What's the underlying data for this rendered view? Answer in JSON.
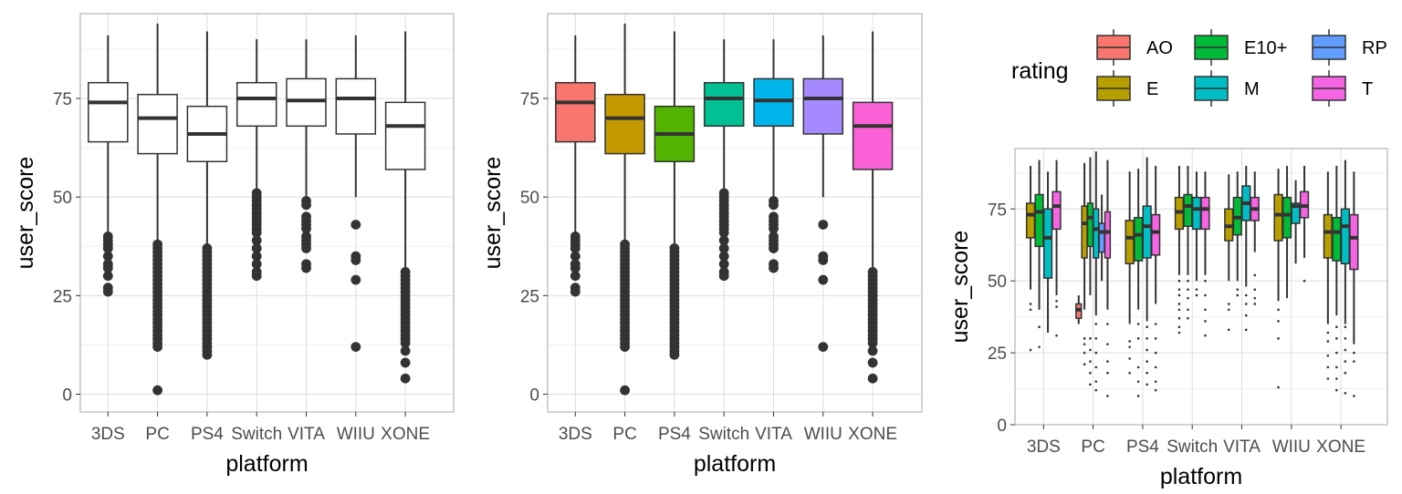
{
  "chart_data": [
    {
      "type": "box",
      "panel": "left",
      "xlabel": "platform",
      "ylabel": "user_score",
      "categories": [
        "3DS",
        "PC",
        "PS4",
        "Switch",
        "VITA",
        "WIIU",
        "XONE"
      ],
      "y_ticks": [
        0,
        25,
        50,
        75
      ],
      "ylim": [
        -4.5,
        96.5
      ],
      "fill": "#ffffff",
      "boxes": [
        {
          "q1": 64,
          "median": 74,
          "q3": 79,
          "lower": 41,
          "upper": 91,
          "outliers": [
            40,
            39,
            38,
            37,
            35,
            33,
            32,
            30,
            27,
            26
          ]
        },
        {
          "q1": 61,
          "median": 70,
          "q3": 76,
          "lower": 39,
          "upper": 94,
          "outliers": [
            38,
            37,
            36,
            35,
            34,
            33,
            32,
            31,
            30,
            29,
            28,
            27,
            26,
            25,
            24,
            23,
            22,
            21,
            20,
            19,
            18,
            17,
            16,
            15,
            14,
            13,
            12,
            1
          ]
        },
        {
          "q1": 59,
          "median": 66,
          "q3": 73,
          "lower": 38,
          "upper": 92,
          "outliers": [
            37,
            36,
            35,
            34,
            33,
            32,
            31,
            30,
            29,
            28,
            27,
            26,
            25,
            24,
            23,
            22,
            21,
            20,
            19,
            18,
            17,
            16,
            15,
            14,
            13,
            12,
            11,
            10
          ]
        },
        {
          "q1": 68,
          "median": 75,
          "q3": 79,
          "lower": 52,
          "upper": 90,
          "outliers": [
            51,
            50,
            49,
            48,
            47,
            46,
            45,
            44,
            43,
            42,
            41,
            39,
            37,
            35,
            33,
            31,
            30
          ]
        },
        {
          "q1": 68,
          "median": 74.5,
          "q3": 80,
          "lower": 50,
          "upper": 90,
          "outliers": [
            49,
            48,
            45,
            44,
            43,
            42,
            40,
            39,
            38,
            37,
            33,
            32
          ]
        },
        {
          "q1": 66,
          "median": 75,
          "q3": 80,
          "lower": 50,
          "upper": 91,
          "outliers": [
            43,
            35,
            34,
            29,
            12
          ]
        },
        {
          "q1": 57,
          "median": 68,
          "q3": 74,
          "lower": 32,
          "upper": 92,
          "outliers": [
            31,
            30,
            29,
            28,
            27,
            26,
            25,
            24,
            23,
            22,
            21,
            20,
            19,
            18,
            17,
            16,
            15,
            14,
            13,
            11,
            8,
            4
          ]
        }
      ]
    },
    {
      "type": "box",
      "panel": "middle",
      "xlabel": "platform",
      "ylabel": "user_score",
      "categories": [
        "3DS",
        "PC",
        "PS4",
        "Switch",
        "VITA",
        "WIIU",
        "XONE"
      ],
      "y_ticks": [
        0,
        25,
        50,
        75
      ],
      "ylim": [
        -4.5,
        96.5
      ],
      "fills": [
        "#F8766D",
        "#C49A00",
        "#53B400",
        "#00C094",
        "#00B6EB",
        "#A58AFF",
        "#FB61D7"
      ],
      "boxes": [
        {
          "q1": 64,
          "median": 74,
          "q3": 79,
          "lower": 41,
          "upper": 91,
          "outliers": [
            40,
            39,
            38,
            37,
            35,
            33,
            32,
            30,
            27,
            26
          ]
        },
        {
          "q1": 61,
          "median": 70,
          "q3": 76,
          "lower": 39,
          "upper": 94,
          "outliers": [
            38,
            37,
            36,
            35,
            34,
            33,
            32,
            31,
            30,
            29,
            28,
            27,
            26,
            25,
            24,
            23,
            22,
            21,
            20,
            19,
            18,
            17,
            16,
            15,
            14,
            13,
            12,
            1
          ]
        },
        {
          "q1": 59,
          "median": 66,
          "q3": 73,
          "lower": 38,
          "upper": 92,
          "outliers": [
            37,
            36,
            35,
            34,
            33,
            32,
            31,
            30,
            29,
            28,
            27,
            26,
            25,
            24,
            23,
            22,
            21,
            20,
            19,
            18,
            17,
            16,
            15,
            14,
            13,
            12,
            11,
            10
          ]
        },
        {
          "q1": 68,
          "median": 75,
          "q3": 79,
          "lower": 52,
          "upper": 90,
          "outliers": [
            51,
            50,
            49,
            48,
            47,
            46,
            45,
            44,
            43,
            42,
            41,
            39,
            37,
            35,
            33,
            31,
            30
          ]
        },
        {
          "q1": 68,
          "median": 74.5,
          "q3": 80,
          "lower": 50,
          "upper": 90,
          "outliers": [
            49,
            48,
            45,
            44,
            43,
            42,
            40,
            39,
            38,
            37,
            33,
            32
          ]
        },
        {
          "q1": 66,
          "median": 75,
          "q3": 80,
          "lower": 50,
          "upper": 91,
          "outliers": [
            43,
            35,
            34,
            29,
            12
          ]
        },
        {
          "q1": 57,
          "median": 68,
          "q3": 74,
          "lower": 32,
          "upper": 92,
          "outliers": [
            31,
            30,
            29,
            28,
            27,
            26,
            25,
            24,
            23,
            22,
            21,
            20,
            19,
            18,
            17,
            16,
            15,
            14,
            13,
            11,
            8,
            4
          ]
        }
      ]
    },
    {
      "type": "box",
      "panel": "right",
      "xlabel": "platform",
      "ylabel": "user_score",
      "categories": [
        "3DS",
        "PC",
        "PS4",
        "Switch",
        "VITA",
        "WIIU",
        "XONE"
      ],
      "y_ticks": [
        0,
        25,
        50,
        75
      ],
      "ylim": [
        0,
        96
      ],
      "legend": {
        "title": "rating",
        "placement": "top",
        "entries": [
          {
            "label": "AO",
            "color": "#F8766D"
          },
          {
            "label": "E10+",
            "color": "#00BA38"
          },
          {
            "label": "RP",
            "color": "#619CFF"
          },
          {
            "label": "E",
            "color": "#B79F00"
          },
          {
            "label": "M",
            "color": "#00BFC4"
          },
          {
            "label": "T",
            "color": "#F564E3"
          }
        ]
      },
      "groups": [
        {
          "platform": "3DS",
          "boxes": [
            {
              "rating": "E",
              "q1": 65,
              "median": 73,
              "q3": 77,
              "lower": 47,
              "upper": 90,
              "outliers": [
                42,
                40,
                26
              ]
            },
            {
              "rating": "E10+",
              "q1": 62,
              "median": 74,
              "q3": 80,
              "lower": 40,
              "upper": 92,
              "outliers": [
                34,
                27
              ]
            },
            {
              "rating": "M",
              "q1": 51,
              "median": 65,
              "q3": 75,
              "lower": 32,
              "upper": 88,
              "outliers": []
            },
            {
              "rating": "T",
              "q1": 68,
              "median": 76,
              "q3": 81,
              "lower": 45,
              "upper": 92,
              "outliers": [
                43,
                41,
                31
              ]
            }
          ]
        },
        {
          "platform": "PC",
          "boxes": [
            {
              "rating": "AO",
              "q1": 37,
              "median": 40,
              "q3": 42,
              "lower": 35,
              "upper": 45,
              "outliers": []
            },
            {
              "rating": "E",
              "q1": 58,
              "median": 70,
              "q3": 76,
              "lower": 40,
              "upper": 91,
              "outliers": [
                30,
                28,
                25,
                21
              ]
            },
            {
              "rating": "E10+",
              "q1": 62,
              "median": 72,
              "q3": 77,
              "lower": 45,
              "upper": 93,
              "outliers": [
                30,
                26,
                22,
                18,
                14
              ]
            },
            {
              "rating": "M",
              "q1": 58,
              "median": 68,
              "q3": 75,
              "lower": 38,
              "upper": 95,
              "outliers": [
                35,
                30,
                25,
                20,
                15,
                12
              ]
            },
            {
              "rating": "RP",
              "q1": 60,
              "median": 67,
              "q3": 70,
              "lower": 50,
              "upper": 80,
              "outliers": []
            },
            {
              "rating": "T",
              "q1": 58,
              "median": 67,
              "q3": 74,
              "lower": 40,
              "upper": 92,
              "outliers": [
                35,
                28,
                22,
                18,
                10
              ]
            }
          ]
        },
        {
          "platform": "PS4",
          "boxes": [
            {
              "rating": "E",
              "q1": 56,
              "median": 65,
              "q3": 71,
              "lower": 35,
              "upper": 88,
              "outliers": [
                29,
                27,
                23,
                18
              ]
            },
            {
              "rating": "E10+",
              "q1": 57,
              "median": 66,
              "q3": 72,
              "lower": 40,
              "upper": 89,
              "outliers": [
                35,
                30,
                20,
                15,
                10
              ]
            },
            {
              "rating": "M",
              "q1": 58,
              "median": 69,
              "q3": 76,
              "lower": 36,
              "upper": 93,
              "outliers": [
                34,
                30,
                26,
                22,
                18,
                14
              ]
            },
            {
              "rating": "T",
              "q1": 59,
              "median": 67,
              "q3": 73,
              "lower": 42,
              "upper": 90,
              "outliers": [
                35,
                30,
                25,
                20,
                15,
                12
              ]
            }
          ]
        },
        {
          "platform": "Switch",
          "boxes": [
            {
              "rating": "E",
              "q1": 68,
              "median": 74,
              "q3": 79,
              "lower": 52,
              "upper": 90,
              "outliers": [
                50,
                47,
                45,
                42,
                40,
                37,
                34,
                32
              ]
            },
            {
              "rating": "E10+",
              "q1": 69,
              "median": 76,
              "q3": 80,
              "lower": 52,
              "upper": 90,
              "outliers": [
                50,
                47,
                44,
                40,
                37
              ]
            },
            {
              "rating": "M",
              "q1": 68,
              "median": 75,
              "q3": 79,
              "lower": 50,
              "upper": 88,
              "outliers": [
                47,
                45
              ]
            },
            {
              "rating": "T",
              "q1": 68,
              "median": 75,
              "q3": 79,
              "lower": 52,
              "upper": 88,
              "outliers": [
                50,
                45,
                40,
                36,
                31
              ]
            }
          ]
        },
        {
          "platform": "VITA",
          "boxes": [
            {
              "rating": "E",
              "q1": 64,
              "median": 69,
              "q3": 75,
              "lower": 50,
              "upper": 87,
              "outliers": [
                42,
                40,
                33
              ]
            },
            {
              "rating": "E10+",
              "q1": 66,
              "median": 72,
              "q3": 79,
              "lower": 50,
              "upper": 88,
              "outliers": [
                47,
                45
              ]
            },
            {
              "rating": "M",
              "q1": 71,
              "median": 77,
              "q3": 83,
              "lower": 48,
              "upper": 90,
              "outliers": [
                45,
                42,
                38,
                33
              ]
            },
            {
              "rating": "T",
              "q1": 71,
              "median": 75,
              "q3": 79,
              "lower": 60,
              "upper": 88,
              "outliers": [
                52,
                47,
                44,
                42
              ]
            }
          ]
        },
        {
          "platform": "WIIU",
          "boxes": [
            {
              "rating": "E",
              "q1": 64,
              "median": 73,
              "q3": 80,
              "lower": 43,
              "upper": 89,
              "outliers": [
                40,
                36,
                30,
                13
              ]
            },
            {
              "rating": "E10+",
              "q1": 65,
              "median": 73,
              "q3": 79,
              "lower": 44,
              "upper": 90,
              "outliers": []
            },
            {
              "rating": "M",
              "q1": 70,
              "median": 76,
              "q3": 77,
              "lower": 56,
              "upper": 85,
              "outliers": []
            },
            {
              "rating": "T",
              "q1": 72,
              "median": 76,
              "q3": 81,
              "lower": 58,
              "upper": 90,
              "outliers": [
                50
              ]
            }
          ]
        },
        {
          "platform": "XONE",
          "boxes": [
            {
              "rating": "E",
              "q1": 58,
              "median": 67,
              "q3": 73,
              "lower": 35,
              "upper": 88,
              "outliers": [
                32,
                29,
                24,
                20,
                16
              ]
            },
            {
              "rating": "E10+",
              "q1": 57,
              "median": 67,
              "q3": 72,
              "lower": 38,
              "upper": 90,
              "outliers": [
                34,
                30,
                25,
                20,
                16,
                12
              ]
            },
            {
              "rating": "M",
              "q1": 56,
              "median": 69,
              "q3": 75,
              "lower": 35,
              "upper": 92,
              "outliers": [
                34,
                30,
                26,
                22,
                18,
                11
              ]
            },
            {
              "rating": "T",
              "q1": 54,
              "median": 65,
              "q3": 73,
              "lower": 28,
              "upper": 88,
              "outliers": [
                25,
                22,
                10
              ]
            }
          ]
        }
      ]
    }
  ]
}
